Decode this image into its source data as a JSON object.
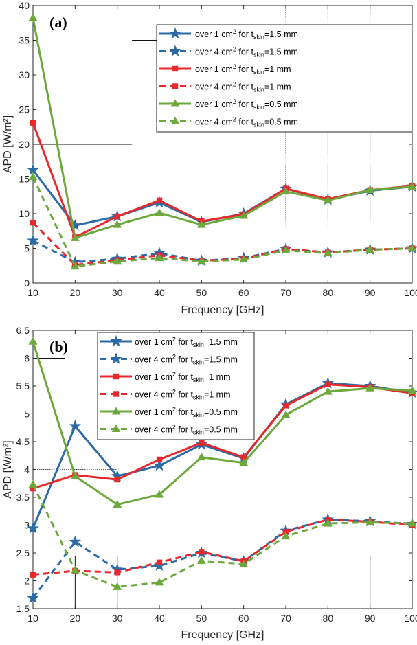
{
  "chart_data": [
    {
      "type": "line",
      "panel": "(a)",
      "xlabel": "Frequency [GHz]",
      "ylabel": "APD [W/m²]",
      "xlim": [
        10,
        100
      ],
      "ylim": [
        0,
        40
      ],
      "xticks": [
        "10",
        "20",
        "30",
        "40",
        "50",
        "60",
        "70",
        "80",
        "90",
        "100"
      ],
      "yticks": [
        "0",
        "5",
        "10",
        "15",
        "20",
        "25",
        "30",
        "35",
        "40"
      ],
      "x": [
        10,
        20,
        30,
        40,
        50,
        60,
        70,
        80,
        90,
        100
      ],
      "series": [
        {
          "name": "over 1 cm² for t_skin=1.5 mm",
          "leg_pre": "over 1 cm",
          "leg_sup": "2",
          "leg_mid": " for t",
          "leg_sub": "skin",
          "leg_post": "=1.5 mm",
          "color": "#2b6aa6",
          "dash": false,
          "marker": "star",
          "values": [
            16.3,
            8.3,
            9.6,
            11.6,
            8.8,
            10.0,
            13.6,
            12.0,
            13.3,
            13.9
          ]
        },
        {
          "name": "over 4 cm² for t_skin=1.5 mm",
          "leg_pre": "over 4 cm",
          "leg_sup": "2",
          "leg_mid": " for t",
          "leg_sub": "skin",
          "leg_post": "=1.5 mm",
          "color": "#2b6aa6",
          "dash": true,
          "marker": "star",
          "values": [
            6.1,
            3.0,
            3.5,
            4.3,
            3.2,
            3.6,
            4.9,
            4.4,
            4.8,
            5.0
          ]
        },
        {
          "name": "over 1 cm² for t_skin=1 mm",
          "leg_pre": "over 1 cm",
          "leg_sup": "2",
          "leg_mid": " for t",
          "leg_sub": "skin",
          "leg_post": "=1 mm",
          "color": "#e8282b",
          "dash": false,
          "marker": "square",
          "values": [
            23.1,
            6.6,
            9.6,
            11.9,
            8.9,
            9.9,
            13.6,
            12.1,
            13.4,
            14.0
          ]
        },
        {
          "name": "over 4 cm² for t_skin=1 mm",
          "leg_pre": "over 4 cm",
          "leg_sup": "2",
          "leg_mid": " for t",
          "leg_sub": "skin",
          "leg_post": "=1 mm",
          "color": "#e8282b",
          "dash": true,
          "marker": "square",
          "values": [
            8.7,
            2.6,
            3.3,
            4.0,
            3.2,
            3.5,
            4.9,
            4.4,
            4.8,
            5.0
          ]
        },
        {
          "name": "over 1 cm² for t_skin=0.5 mm",
          "leg_pre": "over 1 cm",
          "leg_sup": "2",
          "leg_mid": " for t",
          "leg_sub": "skin",
          "leg_post": "=0.5 mm",
          "color": "#6ca83c",
          "dash": false,
          "marker": "triangle",
          "values": [
            38.2,
            6.5,
            8.4,
            10.1,
            8.4,
            9.7,
            13.2,
            11.9,
            13.4,
            13.9
          ]
        },
        {
          "name": "over 4 cm² for t_skin=0.5 mm",
          "leg_pre": "over 4 cm",
          "leg_sup": "2",
          "leg_mid": " for t",
          "leg_sub": "skin",
          "leg_post": "=0.5 mm",
          "color": "#6ca83c",
          "dash": true,
          "marker": "triangle",
          "values": [
            15.3,
            2.4,
            3.1,
            3.6,
            3.1,
            3.4,
            4.7,
            4.3,
            4.8,
            5.0
          ]
        }
      ],
      "reference_lines": [
        {
          "orientation": "h",
          "value": 35,
          "from": 33.5,
          "to": 100,
          "style": "solid"
        },
        {
          "orientation": "h",
          "value": 20,
          "from": 10,
          "to": 33.5,
          "style": "solid"
        },
        {
          "orientation": "h",
          "value": 15,
          "from": 33.5,
          "to": 100,
          "style": "solid"
        },
        {
          "orientation": "v",
          "value": 70,
          "from": 8,
          "to": 40,
          "style": "dotted"
        },
        {
          "orientation": "v",
          "value": 80,
          "from": 8,
          "to": 40,
          "style": "dotted"
        },
        {
          "orientation": "v",
          "value": 90,
          "from": 8,
          "to": 40,
          "style": "dotted"
        }
      ],
      "legend": "top-right"
    },
    {
      "type": "line",
      "panel": "(b)",
      "xlabel": "Frequency [GHz]",
      "ylabel": "APD [W/m²]",
      "xlim": [
        10,
        100
      ],
      "ylim": [
        1.5,
        6.5
      ],
      "xticks": [
        "10",
        "20",
        "30",
        "40",
        "50",
        "60",
        "70",
        "80",
        "90",
        "100"
      ],
      "yticks": [
        "1.5",
        "2",
        "2.5",
        "3",
        "3.5",
        "4",
        "4.5",
        "5",
        "5.5",
        "6",
        "6.5"
      ],
      "x": [
        10,
        20,
        30,
        40,
        50,
        60,
        70,
        80,
        90,
        100
      ],
      "series": [
        {
          "name": "over 1 cm² for t_skin=1.5 mm",
          "leg_pre": "over 1 cm",
          "leg_sup": "2",
          "leg_mid": " for t",
          "leg_sub": "skin",
          "leg_post": "=1.5 mm",
          "color": "#2b6aa6",
          "dash": false,
          "marker": "star",
          "values": [
            2.94,
            4.78,
            3.88,
            4.07,
            4.45,
            4.2,
            5.17,
            5.55,
            5.5,
            5.38
          ]
        },
        {
          "name": "over 4 cm² for t_skin=1.5 mm",
          "leg_pre": "over 4 cm",
          "leg_sup": "2",
          "leg_mid": " for t",
          "leg_sub": "skin",
          "leg_post": "=1.5 mm",
          "color": "#2b6aa6",
          "dash": true,
          "marker": "star",
          "values": [
            1.69,
            2.7,
            2.2,
            2.27,
            2.5,
            2.35,
            2.9,
            3.1,
            3.07,
            3.02
          ]
        },
        {
          "name": "over 1 cm² for t_skin=1 mm",
          "leg_pre": "over 1 cm",
          "leg_sup": "2",
          "leg_mid": " for t",
          "leg_sub": "skin",
          "leg_post": "=1 mm",
          "color": "#e8282b",
          "dash": false,
          "marker": "square",
          "values": [
            3.66,
            3.9,
            3.82,
            4.18,
            4.48,
            4.22,
            5.15,
            5.53,
            5.48,
            5.37
          ]
        },
        {
          "name": "over 4 cm² for t_skin=1 mm",
          "leg_pre": "over 4 cm",
          "leg_sup": "2",
          "leg_mid": " for t",
          "leg_sub": "skin",
          "leg_post": "=1 mm",
          "color": "#e8282b",
          "dash": true,
          "marker": "square",
          "values": [
            2.11,
            2.18,
            2.15,
            2.33,
            2.52,
            2.35,
            2.88,
            3.1,
            3.06,
            3.0
          ]
        },
        {
          "name": "over 1 cm² for t_skin=0.5 mm",
          "leg_pre": "over 1 cm",
          "leg_sup": "2",
          "leg_mid": " for t",
          "leg_sub": "skin",
          "leg_post": "=0.5 mm",
          "color": "#6ca83c",
          "dash": false,
          "marker": "triangle",
          "values": [
            6.3,
            3.88,
            3.37,
            3.55,
            4.22,
            4.12,
            4.98,
            5.4,
            5.46,
            5.42
          ]
        },
        {
          "name": "over 4 cm² for t_skin=0.5 mm",
          "leg_pre": "over 4 cm",
          "leg_sup": "2",
          "leg_mid": " for t",
          "leg_sub": "skin",
          "leg_post": "=0.5 mm",
          "color": "#6ca83c",
          "dash": true,
          "marker": "triangle",
          "values": [
            3.73,
            2.19,
            1.89,
            1.97,
            2.36,
            2.3,
            2.8,
            3.03,
            3.05,
            3.03
          ]
        }
      ],
      "reference_lines": [
        {
          "orientation": "h",
          "value": 6,
          "from": 10,
          "to": 17.5,
          "style": "solid"
        },
        {
          "orientation": "h",
          "value": 5,
          "from": 10,
          "to": 17.5,
          "style": "solid"
        },
        {
          "orientation": "h",
          "value": 4,
          "from": 10,
          "to": 30,
          "style": "dotted"
        },
        {
          "orientation": "v",
          "value": 20,
          "from": 1.5,
          "to": 2.45,
          "style": "solid"
        },
        {
          "orientation": "v",
          "value": 30,
          "from": 1.5,
          "to": 2.45,
          "style": "solid"
        },
        {
          "orientation": "v",
          "value": 90,
          "from": 1.5,
          "to": 2.45,
          "style": "solid"
        }
      ],
      "legend": "top-left"
    }
  ]
}
